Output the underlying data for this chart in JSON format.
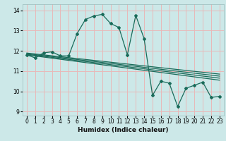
{
  "title": "",
  "xlabel": "Humidex (Indice chaleur)",
  "bg_color": "#cce8e8",
  "grid_color_major": "#e8b8b8",
  "line_color": "#1a6b5a",
  "xlim": [
    -0.5,
    23.5
  ],
  "ylim": [
    8.8,
    14.3
  ],
  "xticks": [
    0,
    1,
    2,
    3,
    4,
    5,
    6,
    7,
    8,
    9,
    10,
    11,
    12,
    13,
    14,
    15,
    16,
    17,
    18,
    19,
    20,
    21,
    22,
    23
  ],
  "yticks": [
    9,
    10,
    11,
    12,
    13,
    14
  ],
  "main_line_x": [
    0,
    1,
    2,
    3,
    4,
    5,
    6,
    7,
    8,
    9,
    10,
    11,
    12,
    13,
    14,
    15,
    16,
    17,
    18,
    19,
    20,
    21,
    22,
    23
  ],
  "main_line_y": [
    11.8,
    11.65,
    11.9,
    11.95,
    11.75,
    11.75,
    12.85,
    13.55,
    13.72,
    13.8,
    13.35,
    13.15,
    11.8,
    13.75,
    12.6,
    9.8,
    10.5,
    10.4,
    9.25,
    10.15,
    10.3,
    10.45,
    9.7,
    9.75
  ],
  "band_line_starts": [
    11.8,
    11.83,
    11.86,
    11.89
  ],
  "band_line_ends": [
    10.55,
    10.65,
    10.75,
    10.85
  ]
}
